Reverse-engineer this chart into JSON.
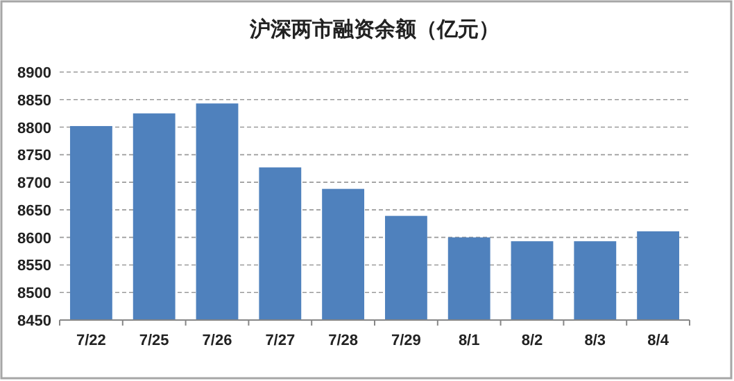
{
  "chart_data": {
    "type": "bar",
    "title": "沪深两市融资余额（亿元）",
    "categories": [
      "7/22",
      "7/25",
      "7/26",
      "7/27",
      "7/28",
      "7/29",
      "8/1",
      "8/2",
      "8/3",
      "8/4"
    ],
    "values": [
      8802,
      8825,
      8843,
      8727,
      8688,
      8639,
      8600,
      8593,
      8593,
      8611
    ],
    "color": "#4f81bd",
    "ylim": [
      8450,
      8900
    ],
    "yticks": [
      8450,
      8500,
      8550,
      8600,
      8650,
      8700,
      8750,
      8800,
      8850,
      8900
    ],
    "grid": "y"
  }
}
